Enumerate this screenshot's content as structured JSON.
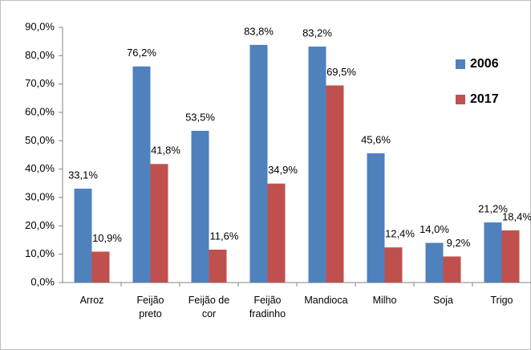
{
  "chart_data": {
    "type": "bar",
    "categories": [
      "Arroz",
      "Feijão preto",
      "Feijão de cor",
      "Feijão fradinho",
      "Mandioca",
      "Milho",
      "Soja",
      "Trigo"
    ],
    "series": [
      {
        "name": "2006",
        "color": "#4f81bd",
        "values": [
          33.1,
          76.2,
          53.5,
          83.8,
          83.2,
          45.6,
          14.0,
          21.2
        ],
        "value_labels": [
          "33,1%",
          "76,2%",
          "53,5%",
          "83,8%",
          "83,2%",
          "45,6%",
          "14,0%",
          "21,2%"
        ]
      },
      {
        "name": "2017",
        "color": "#c0504d",
        "values": [
          10.9,
          41.8,
          11.6,
          34.9,
          69.5,
          12.4,
          9.2,
          18.4
        ],
        "value_labels": [
          "10,9%",
          "41,8%",
          "11,6%",
          "34,9%",
          "69,5%",
          "12,4%",
          "9,2%",
          "18,4%"
        ]
      }
    ],
    "ylim": [
      0,
      90
    ],
    "yticks": [
      {
        "value": 0,
        "label": "0,0%"
      },
      {
        "value": 10,
        "label": "10,0%"
      },
      {
        "value": 20,
        "label": "20,0%"
      },
      {
        "value": 30,
        "label": "30,0%"
      },
      {
        "value": 40,
        "label": "40,0%"
      },
      {
        "value": 50,
        "label": "50,0%"
      },
      {
        "value": 60,
        "label": "60,0%"
      },
      {
        "value": 70,
        "label": "70,0%"
      },
      {
        "value": 80,
        "label": "80,0%"
      },
      {
        "value": 90,
        "label": "90,0%"
      }
    ],
    "legend": "right"
  }
}
